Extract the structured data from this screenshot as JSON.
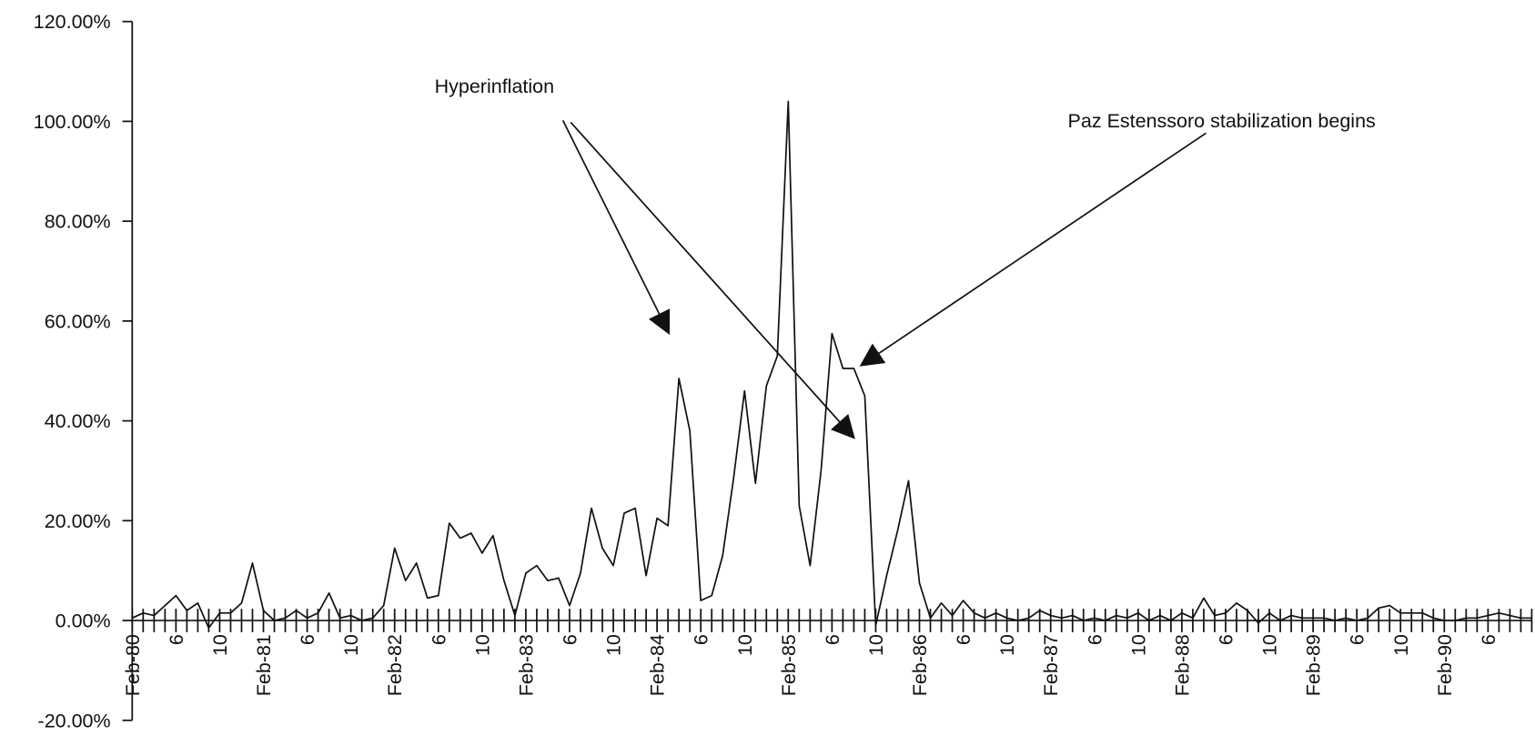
{
  "chart_data": {
    "type": "line",
    "categories": [
      "Feb-80",
      null,
      null,
      null,
      "6",
      null,
      null,
      null,
      "10",
      null,
      null,
      null,
      "Feb-81",
      null,
      null,
      null,
      "6",
      null,
      null,
      null,
      "10",
      null,
      null,
      null,
      "Feb-82",
      null,
      null,
      null,
      "6",
      null,
      null,
      null,
      "10",
      null,
      null,
      null,
      "Feb-83",
      null,
      null,
      null,
      "6",
      null,
      null,
      null,
      "10",
      null,
      null,
      null,
      "Feb-84",
      null,
      null,
      null,
      "6",
      null,
      null,
      null,
      "10",
      null,
      null,
      null,
      "Feb-85",
      null,
      null,
      null,
      "6",
      null,
      null,
      null,
      "10",
      null,
      null,
      null,
      "Feb-86",
      null,
      null,
      null,
      "6",
      null,
      null,
      null,
      "10",
      null,
      null,
      null,
      "Feb-87",
      null,
      null,
      null,
      "6",
      null,
      null,
      null,
      "10",
      null,
      null,
      null,
      "Feb-88",
      null,
      null,
      null,
      "6",
      null,
      null,
      null,
      "10",
      null,
      null,
      null,
      "Feb-89",
      null,
      null,
      null,
      "6",
      null,
      null,
      null,
      "10",
      null,
      null,
      null,
      "Feb-90",
      null,
      null,
      null,
      "6",
      null,
      null,
      null,
      null
    ],
    "values": [
      0.5,
      1.5,
      1,
      3,
      5,
      2,
      3.5,
      -1.5,
      1.5,
      1.5,
      3.5,
      11.5,
      2,
      0,
      0.5,
      2,
      0.5,
      1.5,
      5.5,
      0.5,
      1,
      0,
      0.5,
      3,
      14.5,
      8,
      11.5,
      4.5,
      5,
      19.5,
      16.5,
      17.5,
      13.5,
      17,
      8,
      1,
      9.5,
      11,
      8,
      8.5,
      3,
      9.5,
      22.5,
      14.5,
      11,
      21.5,
      22.5,
      9,
      20.5,
      19,
      48.5,
      38,
      4,
      5,
      13,
      28.5,
      46,
      27.5,
      47,
      53,
      104,
      23,
      11,
      30,
      57.5,
      50.5,
      50.5,
      45,
      -1,
      9,
      18,
      28,
      7.5,
      0.5,
      3.5,
      1,
      4,
      1.5,
      0.5,
      1.5,
      0.5,
      0,
      0.5,
      2,
      1,
      0.5,
      1,
      0,
      0.5,
      0,
      1,
      0.5,
      1.5,
      0,
      1,
      0,
      1.5,
      0.5,
      4.5,
      1,
      1.5,
      3.5,
      2,
      -0.5,
      1.5,
      0,
      1,
      0.5,
      0.5,
      0.5,
      0,
      0.5,
      0,
      0.5,
      2.5,
      3,
      1.5,
      1.5,
      1.5,
      0.5,
      0,
      0,
      0.5,
      0.5,
      1,
      1.5,
      1,
      0.5,
      0.5
    ],
    "color": "#111111",
    "ylim": [
      -20,
      120
    ],
    "yticks": [
      {
        "value": -20,
        "label": "-20.00%"
      },
      {
        "value": 0,
        "label": "0.00%"
      },
      {
        "value": 20,
        "label": "20.00%"
      },
      {
        "value": 40,
        "label": "40.00%"
      },
      {
        "value": 60,
        "label": "60.00%"
      },
      {
        "value": 80,
        "label": "80.00%"
      },
      {
        "value": 100,
        "label": "100.00%"
      },
      {
        "value": 120,
        "label": "120.00%"
      }
    ],
    "grid": false,
    "annotations": [
      "Hyperinflation",
      "Paz Estenssoro stabilization begins"
    ]
  }
}
